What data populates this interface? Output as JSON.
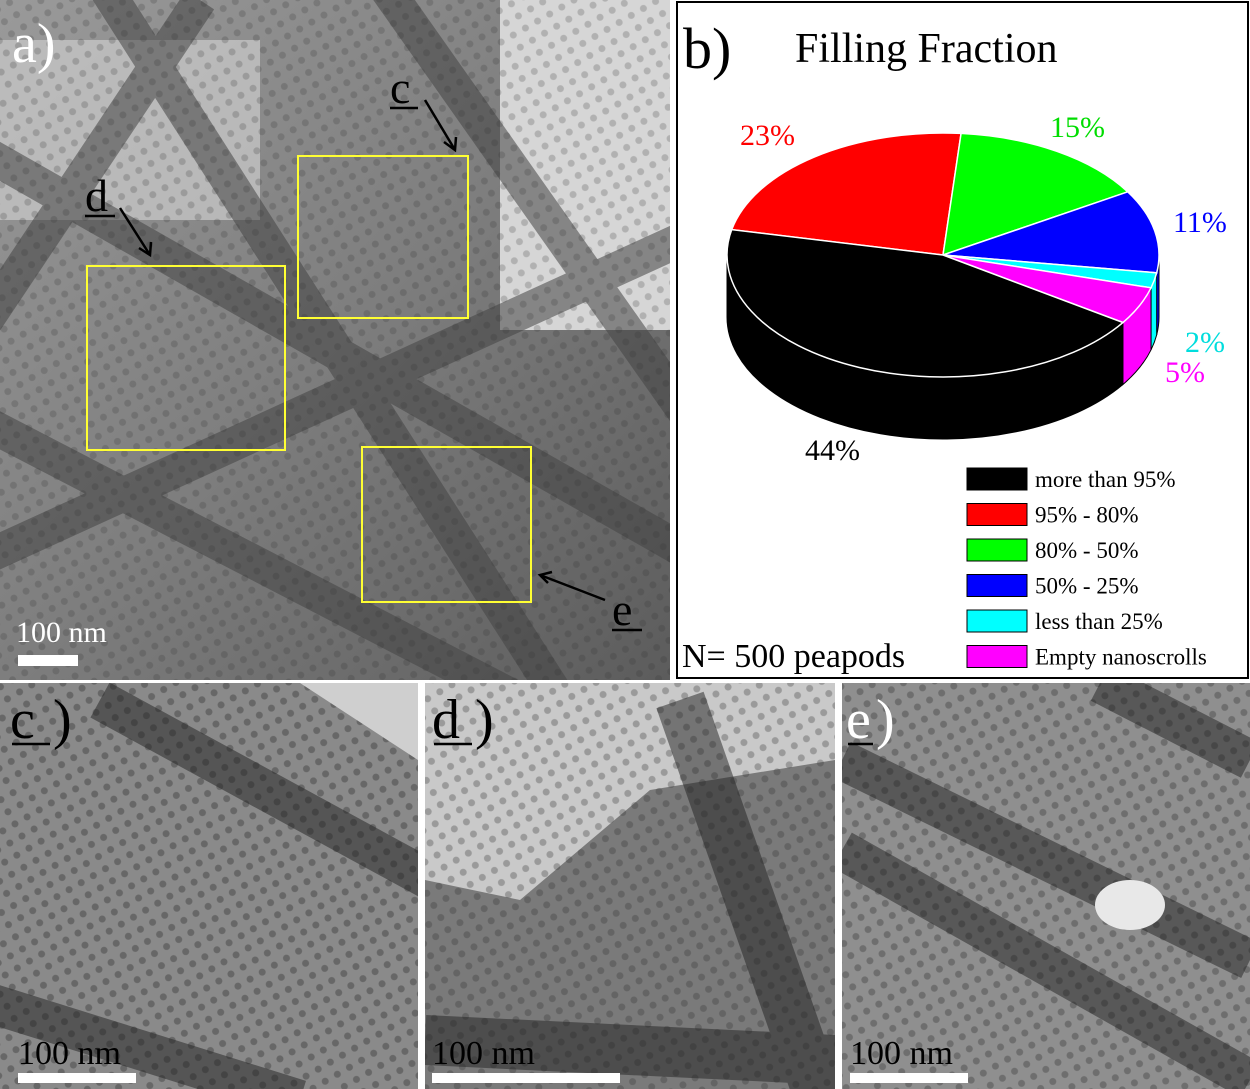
{
  "panel_a": {
    "label": "a)",
    "box_labels": [
      "c",
      "d",
      "e"
    ],
    "scale_bar": "100 nm"
  },
  "chart_data": {
    "type": "pie",
    "panel_label": "b)",
    "title": "Filling Fraction",
    "categories": [
      "more than 95%",
      "95% - 80%",
      "80% - 50%",
      "50% - 25%",
      "less than 25%",
      "Empty nanoscrolls"
    ],
    "values": [
      44,
      23,
      15,
      11,
      2,
      5
    ],
    "value_labels": [
      "44%",
      "23%",
      "15%",
      "11%",
      "2%",
      "5%"
    ],
    "colors": [
      "#000000",
      "#ff0000",
      "#00ff00",
      "#0000ff",
      "#00ffff",
      "#ff00ff"
    ],
    "annotation": "N= 500 peapods"
  },
  "panels": [
    {
      "label": "c",
      "scale_bar": "100 nm"
    },
    {
      "label": "d",
      "scale_bar": "100 nm"
    },
    {
      "label": "e",
      "scale_bar": "100 nm"
    }
  ]
}
